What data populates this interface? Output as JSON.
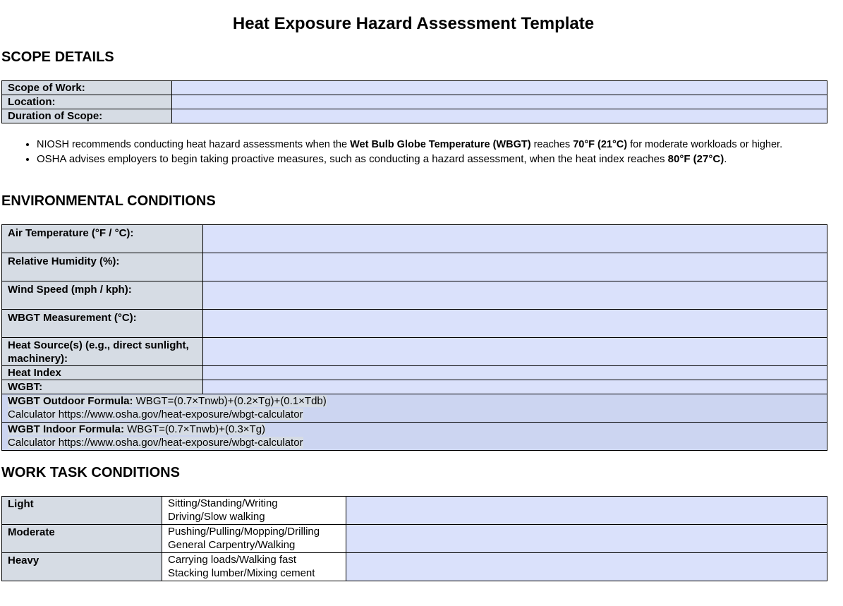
{
  "title": "Heat Exposure Hazard Assessment Template",
  "scope": {
    "heading": "SCOPE DETAILS",
    "rows": [
      {
        "label": "Scope of Work:",
        "value": ""
      },
      {
        "label": "Location:",
        "value": ""
      },
      {
        "label": "Duration of Scope:",
        "value": ""
      }
    ]
  },
  "bullets": [
    {
      "pre": "NIOSH recommends conducting heat hazard assessments when the ",
      "b1": "Wet Bulb Globe Temperature (WBGT)",
      "mid": " reaches ",
      "b2": "70°F (21°C)",
      "post": " for moderate workloads or higher."
    },
    {
      "pre": "OSHA advises employers to begin taking proactive measures, such as conducting a hazard assessment, when the heat index reaches ",
      "b1": "80°F (27°C)",
      "post": "."
    }
  ],
  "env": {
    "heading": "ENVIRONMENTAL CONDITIONS",
    "rows": [
      {
        "label": "Air Temperature (°F / °C):",
        "value": ""
      },
      {
        "label": "Relative Humidity (%):",
        "value": ""
      },
      {
        "label": "Wind Speed (mph / kph):",
        "value": ""
      },
      {
        "label": "WBGT Measurement (°C):",
        "value": ""
      },
      {
        "label": "Heat Source(s) (e.g., direct sunlight, machinery):",
        "value": ""
      },
      {
        "label": "Heat Index",
        "value": ""
      },
      {
        "label": "WGBT:",
        "value": ""
      }
    ],
    "formulas": [
      {
        "label": "WGBT Outdoor Formula:",
        "formula": " WBGT=(0.7×Tnwb)+(0.2×Tg)+(0.1×Tdb)",
        "calc": "Calculator https://www.osha.gov/heat-exposure/wbgt-calculator"
      },
      {
        "label": "WGBT Indoor Formula:",
        "formula": " WBGT=(0.7×Tnwb)+(0.3×Tg)",
        "calc": "Calculator https://www.osha.gov/heat-exposure/wbgt-calculator"
      }
    ]
  },
  "work": {
    "heading": "WORK TASK CONDITIONS",
    "rows": [
      {
        "level": "Light",
        "line1": "Sitting/Standing/Writing",
        "line2": "Driving/Slow walking",
        "value": ""
      },
      {
        "level": "Moderate",
        "line1": "Pushing/Pulling/Mopping/Drilling",
        "line2": "General Carpentry/Walking",
        "value": ""
      },
      {
        "level": "Heavy",
        "line1": "Carrying loads/Walking fast",
        "line2": "Stacking lumber/Mixing cement",
        "value": ""
      }
    ]
  },
  "colors": {
    "label_bg": "#d6dce4",
    "input_bg": "#dae1fb",
    "formula_bg": "#ccd5f1"
  }
}
